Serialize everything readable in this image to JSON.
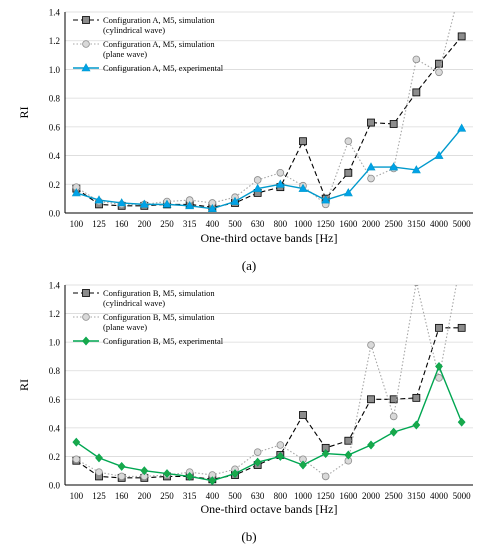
{
  "chart_data": [
    {
      "type": "line",
      "panel_label": "(a)",
      "xlabel": "One-third octave bands [Hz]",
      "ylabel": "RI",
      "ylim": [
        0,
        1.4
      ],
      "yticks": [
        "0.0",
        "0.2",
        "0.4",
        "0.6",
        "0.8",
        "1.0",
        "1.2",
        "1.4"
      ],
      "grid": "horizontal",
      "legend_placement": "top-left",
      "categories": [
        "100",
        "125",
        "160",
        "200",
        "250",
        "315",
        "400",
        "500",
        "630",
        "800",
        "1000",
        "1250",
        "1600",
        "2000",
        "2500",
        "3150",
        "4000",
        "5000"
      ],
      "series": [
        {
          "name": "Configuration A, M5, simulation\n(cylindrical wave)",
          "legend_lines": [
            "Configuration A, M5, simulation",
            "(cylindrical wave)"
          ],
          "style": "dashed",
          "marker": "square",
          "color": "#000000",
          "marker_fill": "#8c8c8c",
          "values": [
            0.17,
            0.06,
            0.05,
            0.05,
            0.06,
            0.06,
            0.04,
            0.07,
            0.14,
            0.18,
            0.5,
            0.1,
            0.28,
            0.63,
            0.62,
            0.84,
            1.04,
            1.23
          ]
        },
        {
          "name": "Configuration A, M5, simulation\n(plane wave)",
          "legend_lines": [
            "Configuration A, M5, simulation",
            "(plane wave)"
          ],
          "style": "dotted",
          "marker": "circle",
          "color": "#a6a6a6",
          "marker_fill": "#d9d9d9",
          "values": [
            0.18,
            0.08,
            0.06,
            0.06,
            0.08,
            0.09,
            0.07,
            0.11,
            0.23,
            0.28,
            0.19,
            0.06,
            0.5,
            0.24,
            0.31,
            1.07,
            0.98,
            1.6
          ]
        },
        {
          "name": "Configuration A, M5, experimental",
          "legend_lines": [
            "Configuration A, M5, experimental"
          ],
          "style": "solid",
          "marker": "triangle",
          "color": "#0099cc",
          "marker_fill": "#00a2e8",
          "values": [
            0.14,
            0.09,
            0.07,
            0.06,
            0.06,
            0.05,
            0.03,
            0.08,
            0.17,
            0.2,
            0.17,
            0.09,
            0.14,
            0.32,
            0.32,
            0.3,
            0.4,
            0.59
          ]
        }
      ]
    },
    {
      "type": "line",
      "panel_label": "(b)",
      "xlabel": "One-third octave bands [Hz]",
      "ylabel": "RI",
      "ylim": [
        0,
        1.4
      ],
      "yticks": [
        "0.0",
        "0.2",
        "0.4",
        "0.6",
        "0.8",
        "1.0",
        "1.2",
        "1.4"
      ],
      "grid": "horizontal",
      "legend_placement": "top-left",
      "categories": [
        "100",
        "125",
        "160",
        "200",
        "250",
        "315",
        "400",
        "500",
        "630",
        "800",
        "1000",
        "1250",
        "1600",
        "2000",
        "2500",
        "3150",
        "4000",
        "5000"
      ],
      "series": [
        {
          "name": "Configuration B, M5, simulation\n(cylindrical wave)",
          "legend_lines": [
            "Configuration B, M5, simulation",
            "(cylindrical wave)"
          ],
          "style": "dashed",
          "marker": "square",
          "color": "#000000",
          "marker_fill": "#8c8c8c",
          "values": [
            0.17,
            0.06,
            0.05,
            0.05,
            0.06,
            0.06,
            0.04,
            0.07,
            0.14,
            0.21,
            0.49,
            0.26,
            0.31,
            0.6,
            0.6,
            0.61,
            1.1,
            1.1
          ]
        },
        {
          "name": "Configuration B, M5, simulation\n(plane wave)",
          "legend_lines": [
            "Configuration B, M5, simulation",
            "(plane wave)"
          ],
          "style": "dotted",
          "marker": "circle",
          "color": "#a6a6a6",
          "marker_fill": "#d9d9d9",
          "values": [
            0.18,
            0.09,
            0.06,
            0.06,
            0.07,
            0.09,
            0.07,
            0.11,
            0.23,
            0.28,
            0.18,
            0.06,
            0.17,
            0.98,
            0.48,
            1.42,
            0.75,
            1.6
          ]
        },
        {
          "name": "Configuration B, M5, experimental",
          "legend_lines": [
            "Configuration B, M5, experimental"
          ],
          "style": "solid",
          "marker": "diamond",
          "color": "#00a651",
          "marker_fill": "#1aa84a",
          "values": [
            0.3,
            0.19,
            0.13,
            0.1,
            0.08,
            0.06,
            0.03,
            0.08,
            0.16,
            0.2,
            0.14,
            0.22,
            0.21,
            0.28,
            0.37,
            0.42,
            0.83,
            0.44
          ]
        }
      ]
    }
  ]
}
